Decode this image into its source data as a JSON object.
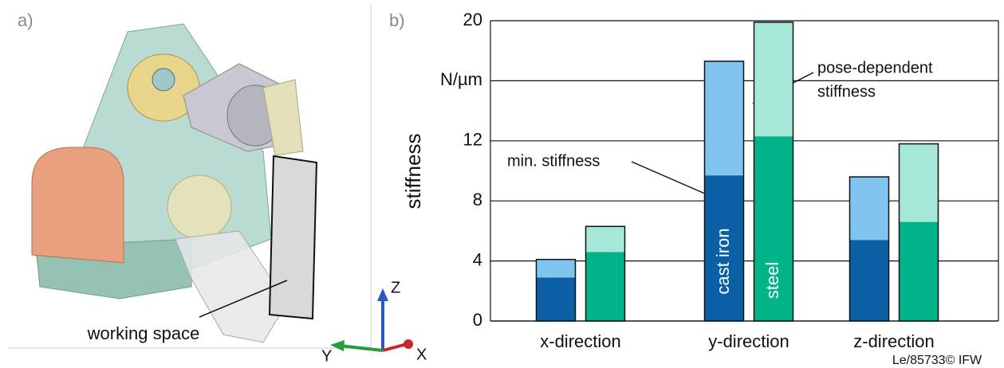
{
  "panel_a": {
    "label": "a)",
    "annotation": "working space",
    "axes": [
      "Z",
      "Y",
      "X"
    ]
  },
  "chart_data": {
    "type": "bar",
    "panel_label": "b)",
    "ylabel": "stiffness",
    "categories": [
      "x-direction",
      "y-direction",
      "z-direction"
    ],
    "ylim": [
      0,
      20
    ],
    "yticks": [
      0,
      4,
      8,
      12,
      {
        "value": 16,
        "label": "N/µm"
      },
      20
    ],
    "grid": true,
    "segment_labels": [
      "min. stiffness",
      "pose-dependent",
      "stiffness"
    ],
    "groups": [
      {
        "name": "cast iron",
        "segments": [
          {
            "color": "#0b5fa5",
            "values": [
              2.9,
              9.7,
              5.4
            ]
          },
          {
            "color": "#80c5ef",
            "values": [
              1.2,
              7.6,
              4.2
            ]
          }
        ]
      },
      {
        "name": "steel",
        "segments": [
          {
            "color": "#00b388",
            "values": [
              4.6,
              12.3,
              6.6
            ]
          },
          {
            "color": "#a6e8d7",
            "values": [
              1.7,
              7.6,
              5.2
            ]
          }
        ]
      }
    ],
    "credit": "Le/85733© IFW"
  }
}
